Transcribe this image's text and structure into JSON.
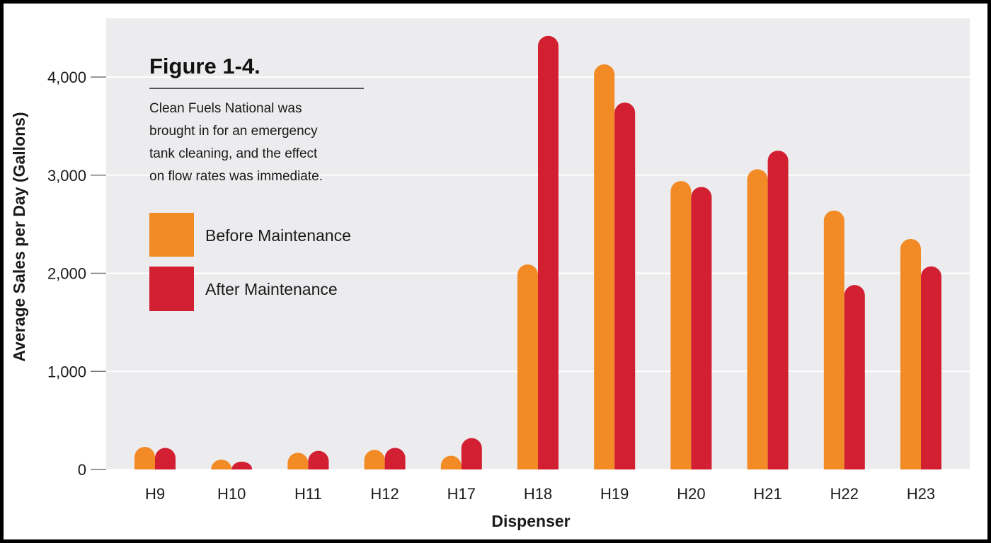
{
  "chart_data": {
    "type": "bar",
    "title": "Figure 1-4.",
    "caption": [
      "Clean Fuels National was",
      "brought in for an emergency",
      "tank cleaning, and the effect",
      "on flow rates was immediate."
    ],
    "xlabel": "Dispenser",
    "ylabel": "Average Sales per Day (Gallons)",
    "categories": [
      "H9",
      "H10",
      "H11",
      "H12",
      "H17",
      "H18",
      "H19",
      "H20",
      "H21",
      "H22",
      "H23"
    ],
    "series": [
      {
        "name": "Before Maintenance",
        "color": "#f28a25",
        "values": [
          230,
          100,
          170,
          200,
          140,
          2090,
          4130,
          2940,
          3060,
          2640,
          2350
        ]
      },
      {
        "name": "After Maintenance",
        "color": "#d21f31",
        "values": [
          220,
          80,
          190,
          220,
          320,
          4420,
          3740,
          2880,
          3250,
          1880,
          2070
        ]
      }
    ],
    "ylim": [
      0,
      4500
    ],
    "yticks": [
      0,
      1000,
      2000,
      3000,
      4000
    ],
    "ytick_labels": [
      "0",
      "1,000",
      "2,000",
      "3,000",
      "4,000"
    ],
    "grid": true,
    "legend_position": "top-left",
    "plot_background": "#ececee"
  }
}
